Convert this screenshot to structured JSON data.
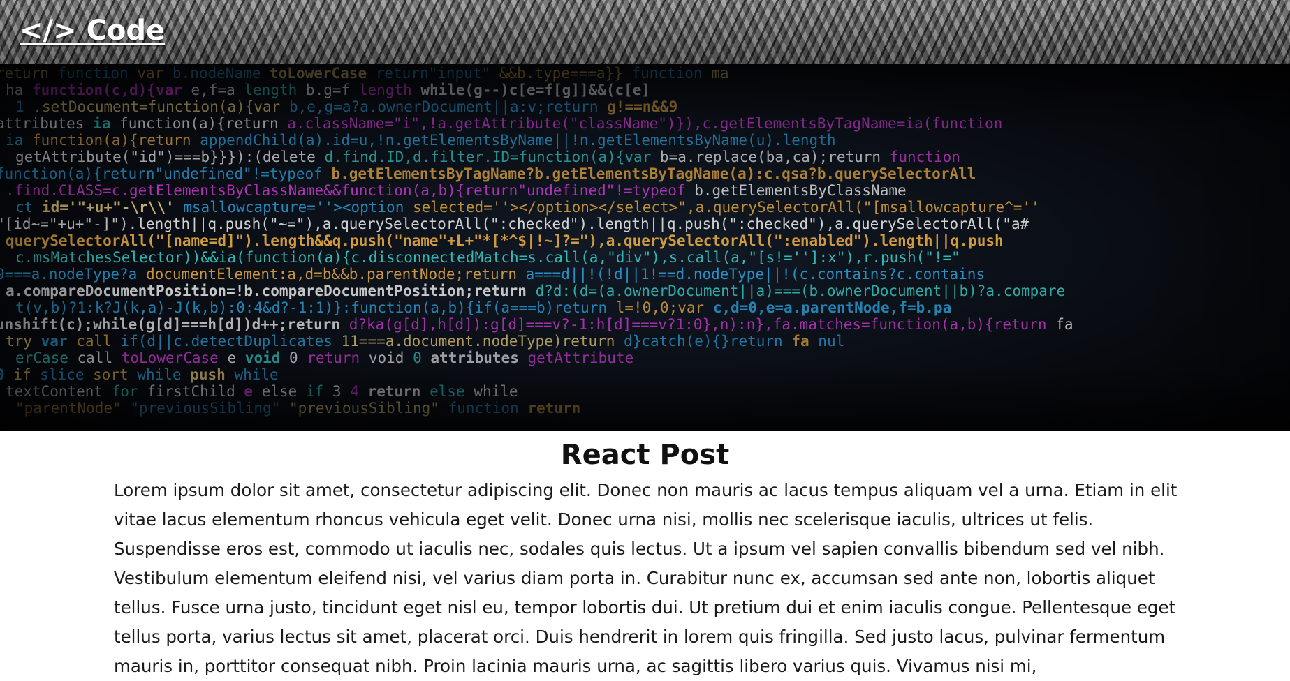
{
  "header": {
    "logo_text": "</> Code"
  },
  "hero": {
    "icon": "code-screen-image",
    "code_lines": [
      "   return function  var  b.nodeName  toLowerCase  return\"input\"  &&b.type===a}}  function ma",
      "  ha function(c,d){var e,f=a  length  b.g=f  length while(g--)c[e=f[g]]&&(c[e]",
      "    1 .setDocument=function(a){var b,e,g=a?a.ownerDocument||a:v;return g!==n&&9",
      "attributes ia function(a){return a.className=\"i\",!a.getAttribute(\"className\")}),c.getElementsByTagName=ia(function",
      "ia function(a){return appendChild(a).id=u,!n.getElementsByName||!n.getElementsByName(u).length",
      "  getAttribute(\"id\")===b}}}):(delete d.find.ID,d.filter.ID=function(a){var b=a.replace(ba,ca);return function",
      " function(a){return\"undefined\"!=typeof b.getElementsByTagName?b.getElementsByTagName(a):c.qsa?b.querySelectorAll",
      "  .find.CLASS=c.getElementsByClassName&&function(a,b){return\"undefined\"!=typeof b.getElementsByClassName",
      "ct id='\"+u+\"-\\r\\\\' msallowcapture=''><option selected=''></option></select>\",a.querySelectorAll(\"[msallowcapture^=''",
      " \"[id~=\"+u+\"-]\").length||q.push(\"~=\"),a.querySelectorAll(\":checked\").length||q.push(\":checked\"),a.querySelectorAll(\"a#",
      "querySelectorAll(\"[name=d]\").length&&q.push(\"name\"+L+\"*[*^$|!~]?=\"),a.querySelectorAll(\":enabled\").length||q.push",
      "  c.msMatchesSelector))&&ia(function(a){c.disconnectedMatch=s.call(a,\"div\"),s.call(a,\"[s!='']:x\"),r.push(\"!=\"",
      "9===a.nodeType?a  documentElement:a,d=b&&b.parentNode;return a===d||!(!d||1!==d.nodeType||!(c.contains?c.contains",
      "  a.compareDocumentPosition=!b.compareDocumentPosition;return d?d:(d=(a.ownerDocument||a)===(b.ownerDocument||b)?a.compare",
      "     t(v,b)?1:k?J(k,a)-J(k,b):0:4&d?-1:1)}:function(a,b){if(a===b)return l=!0,0;var c,d=0,e=a.parentNode,f=b.pa",
      "unshift(c);while(g[d]===h[d])d++;return d?ka(g[d],h[d]):g[d]===v?-1:h[d]===v?1:0},n):n},fa.matches=function(a,b){return fa",
      "   try var  call  if(d||c.detectDuplicates  11===a.document.nodeType)return d}catch(e){}return fa  nul",
      "erCase  call  toLowerCase  e  void 0 return void 0  attributes  getAttribute",
      "   0  if  slice  sort  while  push  while",
      "textContent  for  firstChild  e  else if 3  4  return  else while",
      " \"parentNode\"  \"previousSibling\"  \"previousSibling\"  function  return"
    ]
  },
  "post": {
    "title": "React Post",
    "body": "Lorem ipsum dolor sit amet, consectetur adipiscing elit. Donec non mauris ac lacus tempus aliquam vel a urna. Etiam in elit vitae lacus elementum rhoncus vehicula eget velit. Donec urna nisi, mollis nec scelerisque iaculis, ultrices ut felis. Suspendisse eros est, commodo ut iaculis nec, sodales quis lectus. Ut a ipsum vel sapien convallis bibendum sed vel nibh. Vestibulum elementum eleifend nisi, vel varius diam porta in. Curabitur nunc ex, accumsan sed ante non, lobortis aliquet tellus. Fusce urna justo, tincidunt eget nisl eu, tempor lobortis dui. Ut pretium dui et enim iaculis congue. Pellentesque eget tellus porta, varius lectus sit amet, placerat orci. Duis hendrerit in lorem quis fringilla. Sed justo lacus, pulvinar fermentum mauris in, porttitor consequat nibh. Proin lacinia mauris urna, ac sagittis libero varius quis. Vivamus nisi mi,"
  },
  "colors": {
    "header_text": "#ffffff",
    "code_blue": "#2a9fd8",
    "code_white": "#e8e8e8",
    "code_yellow": "#f2d27a",
    "code_teal": "#34c6c0",
    "code_magenta": "#d43bd8",
    "code_orange": "#e0a640",
    "code_dim": "#3a5a78"
  }
}
